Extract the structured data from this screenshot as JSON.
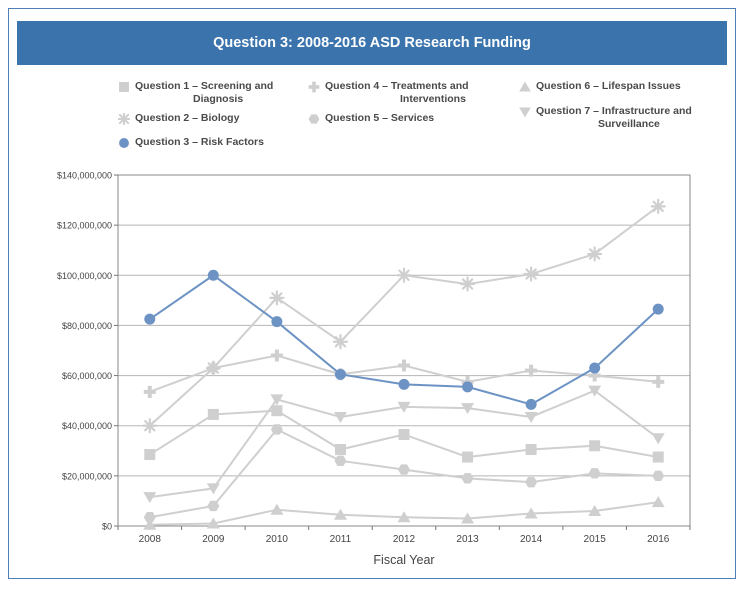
{
  "chart_data": {
    "type": "line",
    "title": "Question 3: 2008-2016 ASD Research Funding",
    "xlabel": "Fiscal Year",
    "ylabel": "",
    "ylim": [
      0,
      140000000
    ],
    "yticks": [
      0,
      20000000,
      40000000,
      60000000,
      80000000,
      100000000,
      120000000,
      140000000
    ],
    "ytick_labels": [
      "$0",
      "$20,000,000",
      "$40,000,000",
      "$60,000,000",
      "$80,000,000",
      "$100,000,000",
      "$120,000,000",
      "$140,000,000"
    ],
    "categories": [
      "2008",
      "2009",
      "2010",
      "2011",
      "2012",
      "2013",
      "2014",
      "2015",
      "2016"
    ],
    "grid": true,
    "series": [
      {
        "name": "Question 1 – Screening and Diagnosis",
        "label_lines": [
          "Question 1 – Screening and",
          "Diagnosis"
        ],
        "marker": "square",
        "color": "#cfcfcf",
        "values": [
          28500000,
          44500000,
          46000000,
          30500000,
          36500000,
          27500000,
          30500000,
          32000000,
          27500000
        ]
      },
      {
        "name": "Question 2 – Biology",
        "label_lines": [
          "Question 2 – Biology"
        ],
        "marker": "asterisk",
        "color": "#cfcfcf",
        "values": [
          40000000,
          63000000,
          91000000,
          73500000,
          100000000,
          96500000,
          100500000,
          108500000,
          127500000
        ]
      },
      {
        "name": "Question 3 – Risk Factors",
        "label_lines": [
          "Question 3 – Risk Factors"
        ],
        "marker": "circle",
        "color": "#6c93c4",
        "values": [
          82500000,
          100000000,
          81500000,
          60500000,
          56500000,
          55500000,
          48500000,
          63000000,
          86500000
        ]
      },
      {
        "name": "Question 4 – Treatments and Interventions",
        "label_lines": [
          "Question 4 – Treatments and",
          "Interventions"
        ],
        "marker": "cross",
        "color": "#cfcfcf",
        "values": [
          53500000,
          63000000,
          68000000,
          60500000,
          64000000,
          57500000,
          62000000,
          60000000,
          57500000
        ]
      },
      {
        "name": "Question 5 – Services",
        "label_lines": [
          "Question 5 – Services"
        ],
        "marker": "hexagon",
        "color": "#cfcfcf",
        "values": [
          3500000,
          8000000,
          38500000,
          26000000,
          22500000,
          19000000,
          17500000,
          21000000,
          20000000
        ]
      },
      {
        "name": "Question 6 – Lifespan Issues",
        "label_lines": [
          "Question 6 – Lifespan Issues"
        ],
        "marker": "triangle-up",
        "color": "#cfcfcf",
        "values": [
          500000,
          1000000,
          6500000,
          4500000,
          3500000,
          3000000,
          5000000,
          6000000,
          9500000
        ]
      },
      {
        "name": "Question 7 – Infrastructure and Surveillance",
        "label_lines": [
          "Question 7 – Infrastructure and",
          "Surveillance"
        ],
        "marker": "triangle-down",
        "color": "#cfcfcf",
        "values": [
          11500000,
          15000000,
          50500000,
          43500000,
          47500000,
          47000000,
          43500000,
          54000000,
          35000000
        ]
      }
    ]
  }
}
